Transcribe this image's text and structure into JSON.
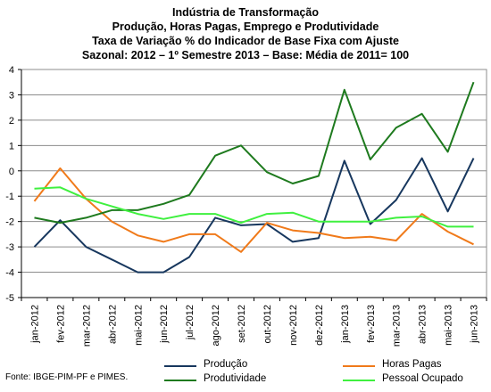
{
  "title_lines": [
    "Indústria de Transformação",
    "Produção, Horas Pagas, Emprego e Produtividade",
    "Taxa de Variação % do Indicador de Base Fixa com Ajuste",
    "Sazonal: 2012 – 1º Semestre 2013 – Base: Média de 2011= 100"
  ],
  "source": "Fonte: IBGE-PIM-PF e PIMES.",
  "chart_data": {
    "type": "line",
    "categories": [
      "jan-2012",
      "fev-2012",
      "mar-2012",
      "abr-2012",
      "mai-2012",
      "jun-2012",
      "jul-2012",
      "ago-2012",
      "set-2012",
      "out-2012",
      "nov-2012",
      "dez-2012",
      "jan-2013",
      "fev-2013",
      "mar-2013",
      "abr-2013",
      "mai-2013",
      "jun-2013"
    ],
    "ylim": [
      -5,
      4
    ],
    "yticks": [
      4,
      3,
      2,
      1,
      0,
      -1,
      -2,
      -3,
      -4,
      -5
    ],
    "grid": true,
    "legend_position": "bottom",
    "series": [
      {
        "name": "Produção",
        "color": "#17375e",
        "values": [
          -3.0,
          -1.95,
          -3.0,
          -3.5,
          -4.0,
          -4.0,
          -3.4,
          -1.85,
          -2.15,
          -2.1,
          -2.8,
          -2.65,
          0.4,
          -2.1,
          -1.15,
          0.5,
          -1.6,
          0.5
        ]
      },
      {
        "name": "Horas Pagas",
        "color": "#f07a1a",
        "values": [
          -1.2,
          0.1,
          -1.1,
          -2.0,
          -2.55,
          -2.8,
          -2.5,
          -2.5,
          -3.2,
          -2.05,
          -2.35,
          -2.45,
          -2.65,
          -2.6,
          -2.75,
          -1.7,
          -2.4,
          -2.9
        ]
      },
      {
        "name": "Produtividade",
        "color": "#1e7a1e",
        "values": [
          -1.85,
          -2.05,
          -1.85,
          -1.55,
          -1.55,
          -1.3,
          -0.95,
          0.6,
          1.0,
          -0.05,
          -0.5,
          -0.2,
          3.2,
          0.45,
          1.7,
          2.25,
          0.75,
          3.5
        ]
      },
      {
        "name": "Pessoal Ocupado",
        "color": "#3ff03f",
        "values": [
          -0.7,
          -0.65,
          -1.1,
          -1.4,
          -1.7,
          -1.9,
          -1.7,
          -1.7,
          -2.05,
          -1.7,
          -1.65,
          -2.0,
          -2.0,
          -2.0,
          -1.85,
          -1.8,
          -2.2,
          -2.2
        ]
      }
    ]
  }
}
